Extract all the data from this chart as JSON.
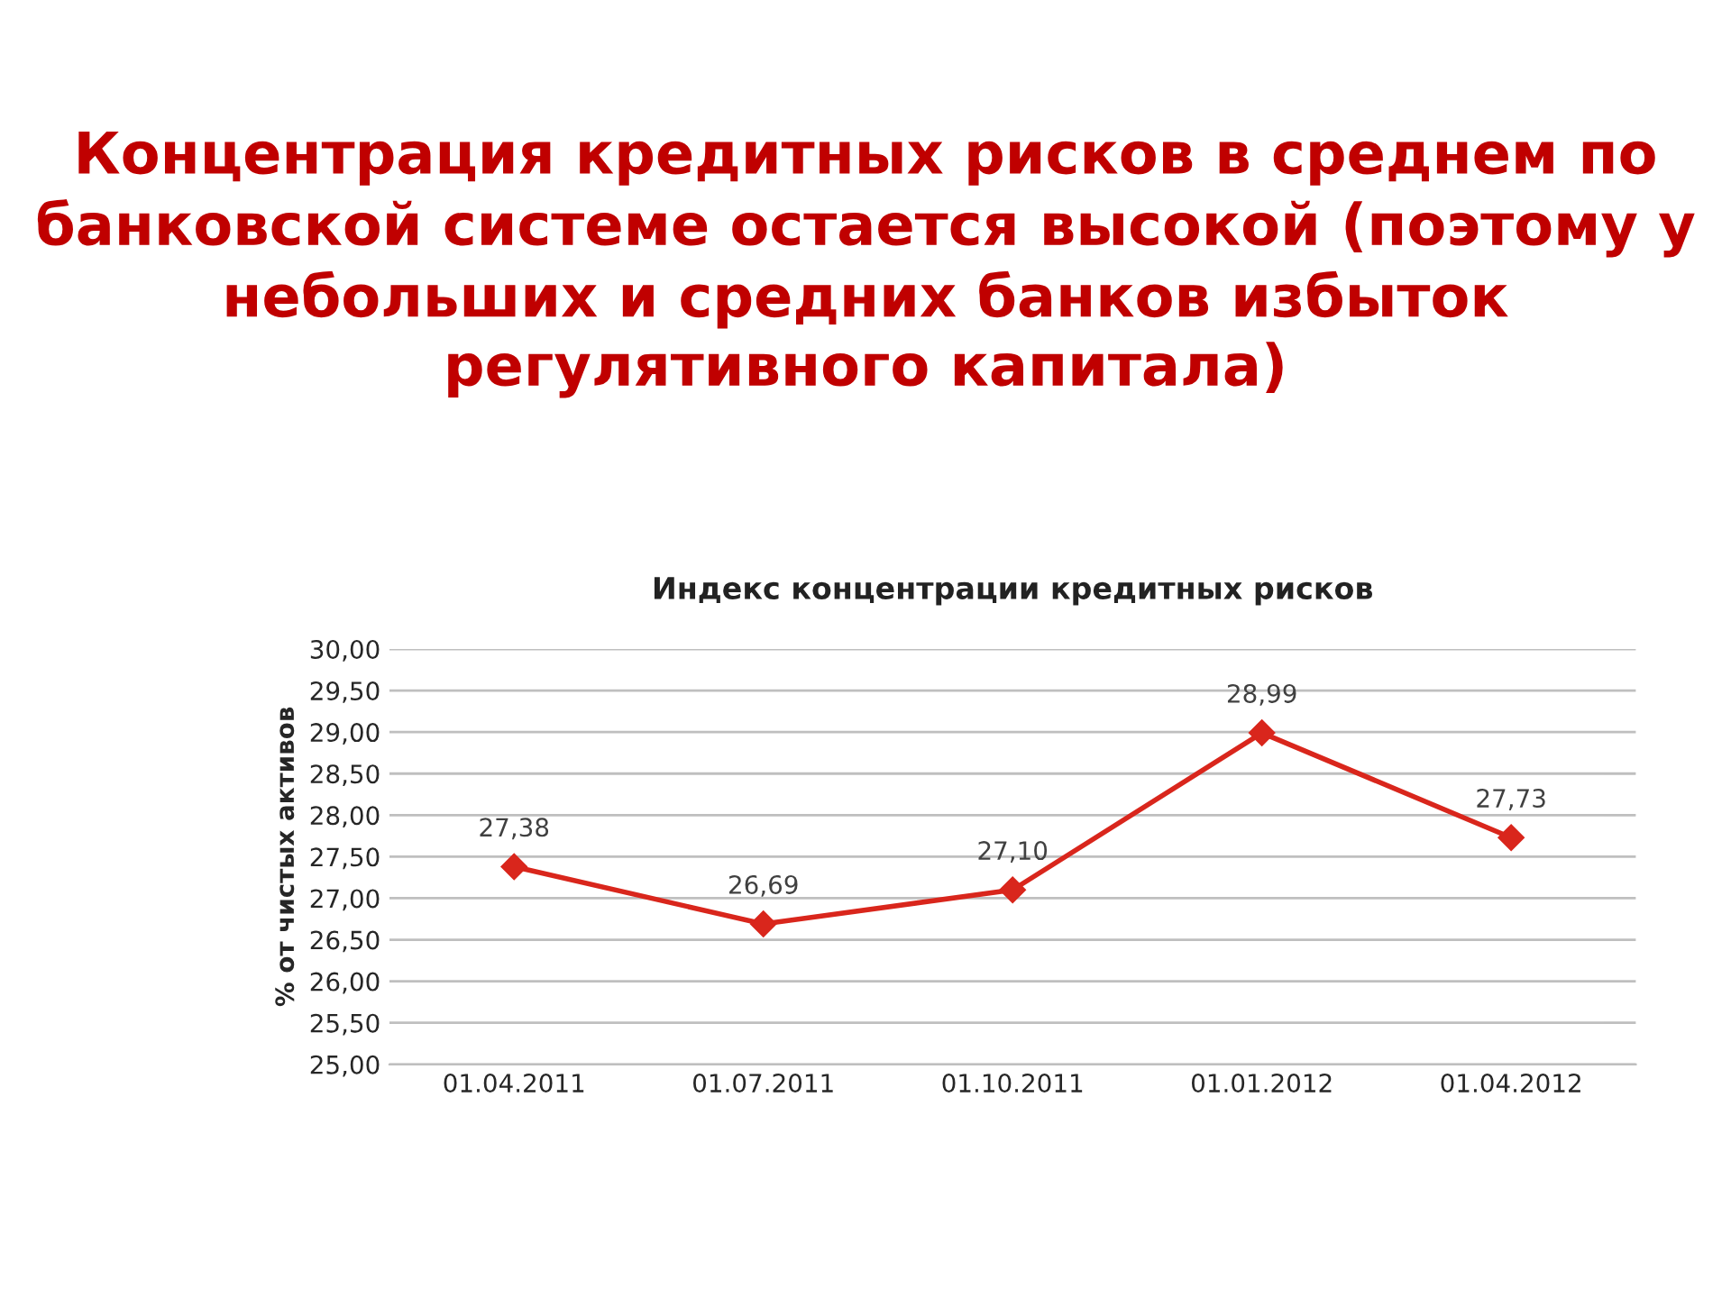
{
  "chart_data": {
    "type": "line",
    "title": "Концентрация кредитных рисков в среднем по банковской системе остается высокой (поэтому у небольших и средних банков избыток регулятивного капитала)",
    "subtitle": "Индекс концентрации кредитных рисков",
    "ylabel": "% от чистых активов",
    "categories": [
      "01.04.2011",
      "01.07.2011",
      "01.10.2011",
      "01.01.2012",
      "01.04.2012"
    ],
    "series": [
      {
        "color": "#d9261c",
        "values": [
          27.38,
          26.69,
          27.1,
          28.99,
          27.73
        ],
        "value_labels": [
          "27,38",
          "26,69",
          "27,10",
          "28,99",
          "27,73"
        ]
      }
    ],
    "ylim": [
      25,
      30
    ],
    "yticks": [
      {
        "value": 25,
        "label": "25,00"
      },
      {
        "value": 25.5,
        "label": "25,50"
      },
      {
        "value": 26,
        "label": "26,00"
      },
      {
        "value": 26.5,
        "label": "26,50"
      },
      {
        "value": 27,
        "label": "27,00"
      },
      {
        "value": 27.5,
        "label": "27,50"
      },
      {
        "value": 28,
        "label": "28,00"
      },
      {
        "value": 28.5,
        "label": "28,50"
      },
      {
        "value": 29,
        "label": "29,00"
      },
      {
        "value": 29.5,
        "label": "29,50"
      },
      {
        "value": 30,
        "label": "30,00"
      }
    ],
    "grid": "y",
    "marker": "diamond",
    "line_style": "solid",
    "legend": false
  }
}
